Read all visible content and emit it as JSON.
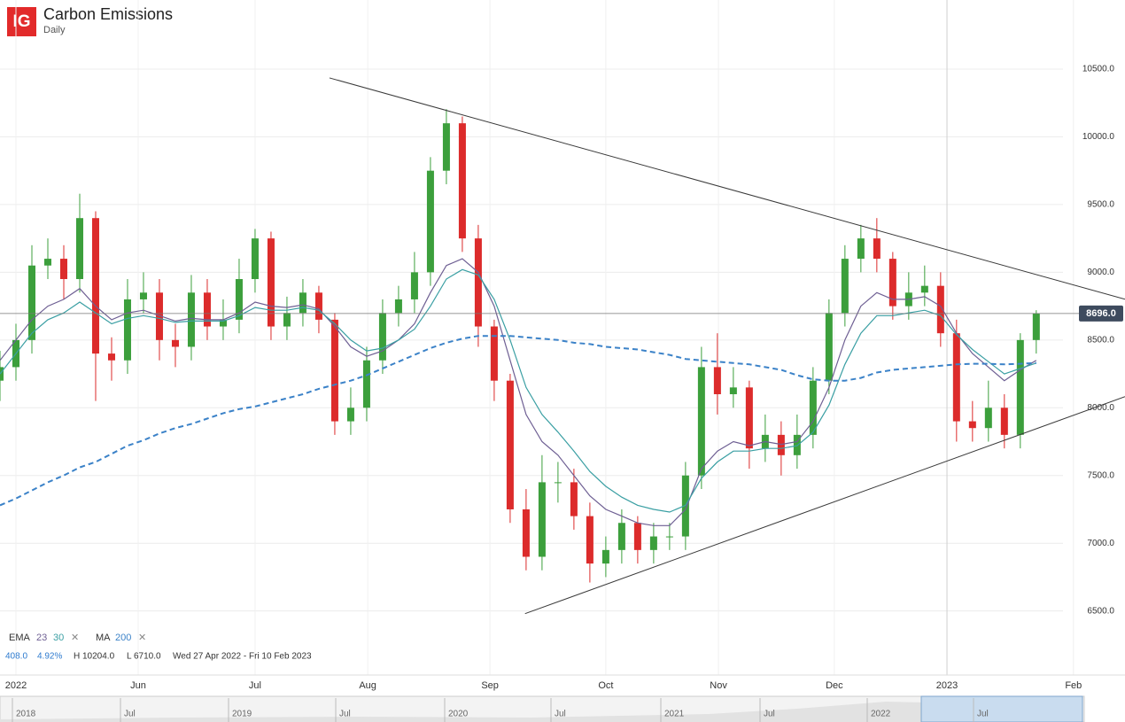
{
  "header": {
    "logo": "IG",
    "title": "Carbon Emissions",
    "subtitle": "Daily"
  },
  "chart_data": {
    "type": "candlestick",
    "x": [
      0,
      3,
      6,
      9,
      12,
      15,
      18,
      21,
      24,
      27,
      30,
      33,
      36,
      39,
      42,
      45,
      48,
      51,
      54,
      57,
      60,
      63,
      66,
      69,
      72,
      75,
      78,
      81,
      84,
      87,
      90,
      93,
      96,
      99,
      102,
      105,
      108,
      111,
      114,
      117,
      120,
      123,
      126,
      129,
      132,
      135,
      138,
      141,
      144,
      147,
      150,
      153,
      156,
      159,
      162,
      165,
      168,
      171,
      174,
      177,
      180,
      183,
      186,
      189,
      192,
      195
    ],
    "open": [
      8200,
      8300,
      8500,
      9050,
      9100,
      8950,
      9400,
      8400,
      8350,
      8800,
      8850,
      8500,
      8450,
      8850,
      8600,
      8650,
      8950,
      9250,
      8600,
      8700,
      8850,
      8650,
      7900,
      8000,
      8350,
      8700,
      8800,
      9000,
      9750,
      10100,
      9250,
      8600,
      8200,
      7250,
      6900,
      7450,
      7450,
      7200,
      6850,
      6950,
      7150,
      6950,
      7050,
      7050,
      7500,
      8300,
      8100,
      8150,
      7700,
      7800,
      7650,
      7800,
      8200,
      8700,
      9100,
      9250,
      9100,
      8750,
      8850,
      8900,
      8550,
      7900,
      7850,
      8000,
      7800,
      8500
    ],
    "high": [
      8420,
      8620,
      9200,
      9250,
      9200,
      9580,
      9450,
      8520,
      8950,
      9000,
      8950,
      8620,
      8980,
      8950,
      8800,
      9100,
      9320,
      9300,
      8820,
      8950,
      8900,
      8700,
      8150,
      8450,
      8800,
      8900,
      9150,
      9850,
      10204,
      10150,
      9350,
      8650,
      8250,
      7400,
      7650,
      7600,
      7550,
      7300,
      7050,
      7250,
      7200,
      7150,
      7150,
      7600,
      8450,
      8550,
      8300,
      8200,
      7950,
      7900,
      7950,
      8300,
      8800,
      9200,
      9350,
      9400,
      9150,
      9000,
      9050,
      9000,
      8650,
      8050,
      8200,
      8100,
      8550,
      8720
    ],
    "low": [
      8050,
      8200,
      8400,
      8950,
      8800,
      8850,
      8050,
      8200,
      8250,
      8700,
      8350,
      8300,
      8350,
      8500,
      8500,
      8550,
      8850,
      8500,
      8500,
      8600,
      8550,
      7800,
      7800,
      7900,
      8250,
      8600,
      8700,
      8900,
      9650,
      9150,
      8450,
      8050,
      7150,
      6800,
      6800,
      7300,
      7100,
      6710,
      6750,
      6850,
      6850,
      6850,
      6950,
      6950,
      7400,
      7950,
      8000,
      7550,
      7600,
      7500,
      7550,
      7700,
      8100,
      8600,
      9000,
      9000,
      8650,
      8650,
      8750,
      8450,
      7750,
      7750,
      7750,
      7700,
      7700,
      8400
    ],
    "close": [
      8300,
      8500,
      9050,
      9100,
      8950,
      9400,
      8400,
      8350,
      8800,
      8850,
      8500,
      8450,
      8850,
      8600,
      8650,
      8950,
      9250,
      8600,
      8700,
      8850,
      8650,
      7900,
      8000,
      8350,
      8700,
      8800,
      9000,
      9750,
      10100,
      9250,
      8600,
      8200,
      7250,
      6900,
      7450,
      7450,
      7200,
      6850,
      6950,
      7150,
      6950,
      7050,
      7050,
      7500,
      8300,
      8100,
      8150,
      7700,
      7800,
      7650,
      7800,
      8200,
      8700,
      9100,
      9250,
      9100,
      8750,
      8850,
      8900,
      8550,
      7900,
      7850,
      8000,
      7800,
      8500,
      8696
    ],
    "up_color": "#3c9f3c",
    "down_color": "#dc2b2b",
    "indicators": [
      {
        "name": "EMA",
        "params": [
          {
            "period": 23,
            "color": "#6e5f93",
            "values": [
              8350,
              8500,
              8650,
              8750,
              8800,
              8880,
              8750,
              8650,
              8700,
              8720,
              8680,
              8640,
              8660,
              8650,
              8650,
              8700,
              8780,
              8750,
              8740,
              8760,
              8730,
              8600,
              8450,
              8380,
              8420,
              8500,
              8620,
              8850,
              9050,
              9100,
              9000,
              8750,
              8350,
              7950,
              7750,
              7650,
              7500,
              7350,
              7250,
              7200,
              7150,
              7130,
              7130,
              7250,
              7550,
              7680,
              7750,
              7720,
              7750,
              7730,
              7750,
              7900,
              8150,
              8500,
              8750,
              8850,
              8800,
              8800,
              8820,
              8750,
              8550,
              8400,
              8300,
              8200,
              8280,
              8350
            ]
          },
          {
            "period": 30,
            "color": "#3a9fa3",
            "values": [
              8250,
              8400,
              8550,
              8650,
              8700,
              8780,
              8700,
              8620,
              8660,
              8680,
              8660,
              8630,
              8640,
              8640,
              8640,
              8680,
              8740,
              8720,
              8720,
              8740,
              8720,
              8620,
              8500,
              8420,
              8440,
              8500,
              8580,
              8750,
              8950,
              9020,
              8980,
              8800,
              8500,
              8150,
              7950,
              7820,
              7680,
              7530,
              7420,
              7340,
              7280,
              7250,
              7230,
              7280,
              7480,
              7600,
              7680,
              7680,
              7700,
              7700,
              7720,
              7820,
              8020,
              8320,
              8550,
              8680,
              8680,
              8700,
              8720,
              8680,
              8540,
              8430,
              8340,
              8250,
              8290,
              8330
            ]
          }
        ]
      },
      {
        "name": "MA",
        "params": [
          {
            "period": 200,
            "color": "#3b82c8",
            "dashed": true,
            "values": [
              7280,
              7330,
              7390,
              7450,
              7500,
              7560,
              7600,
              7660,
              7720,
              7760,
              7810,
              7850,
              7880,
              7920,
              7960,
              7990,
              8010,
              8040,
              8070,
              8100,
              8140,
              8170,
              8200,
              8240,
              8290,
              8340,
              8390,
              8440,
              8480,
              8510,
              8530,
              8530,
              8530,
              8520,
              8510,
              8500,
              8480,
              8470,
              8450,
              8440,
              8430,
              8410,
              8390,
              8360,
              8350,
              8340,
              8330,
              8320,
              8300,
              8280,
              8240,
              8210,
              8200,
              8200,
              8220,
              8260,
              8280,
              8290,
              8300,
              8310,
              8320,
              8325,
              8325,
              8320,
              8325,
              8330
            ]
          }
        ]
      }
    ],
    "trendlines": [
      {
        "x": [
          62,
          211.7
        ],
        "values": [
          10435,
          8801
        ]
      },
      {
        "x": [
          98.8,
          211.7
        ],
        "values": [
          6480,
          8082
        ]
      }
    ],
    "trend_color": "#3a3a3a",
    "last_price": {
      "value": 8696,
      "label": "8696.0"
    },
    "xlim": [
      0,
      211.7
    ],
    "ylim": [
      6040,
      11010
    ],
    "yticks": [
      {
        "value": 6500,
        "label": "6500.0"
      },
      {
        "value": 7000,
        "label": "7000.0"
      },
      {
        "value": 7500,
        "label": "7500.0"
      },
      {
        "value": 8000,
        "label": "8000.0"
      },
      {
        "value": 8500,
        "label": "8500.0"
      },
      {
        "value": 9000,
        "label": "9000.0"
      },
      {
        "value": 9500,
        "label": "9500.0"
      },
      {
        "value": 10000,
        "label": "10000.0"
      },
      {
        "value": 10500,
        "label": "10500.0"
      }
    ],
    "xticks": [
      {
        "value": 3,
        "label": "2022"
      },
      {
        "value": 26,
        "label": "Jun"
      },
      {
        "value": 48,
        "label": "Jul"
      },
      {
        "value": 69.2,
        "label": "Aug"
      },
      {
        "value": 92.2,
        "label": "Sep"
      },
      {
        "value": 114,
        "label": "Oct"
      },
      {
        "value": 135.2,
        "label": "Nov"
      },
      {
        "value": 157,
        "label": "Dec"
      },
      {
        "value": 178.2,
        "label": "2023"
      },
      {
        "value": 202,
        "label": "Feb"
      }
    ],
    "grid": true,
    "stats": {
      "change": "408.0",
      "change_pct": "4.92%",
      "high": "H 10204.0",
      "low": "L 6710.0",
      "range": "Wed 27 Apr 2022 - Fri 10 Feb 2023"
    }
  },
  "navigator": {
    "labels": [
      "2018",
      "Jul",
      "2019",
      "Jul",
      "2020",
      "Jul",
      "2021",
      "Jul",
      "2022",
      "Jul"
    ]
  }
}
